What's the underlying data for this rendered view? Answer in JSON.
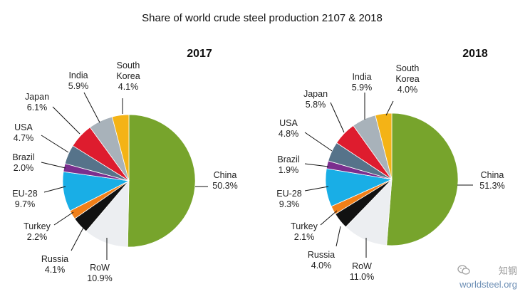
{
  "chart_data": {
    "title": "Share of world crude steel production 2107 & 2018",
    "type": "pie",
    "charts": [
      {
        "year_label": "2017",
        "slices": [
          {
            "name": "China",
            "label_lines": [
              "China"
            ],
            "value_label": "50.3%",
            "value": 50.3,
            "color": "#77a42c"
          },
          {
            "name": "RoW",
            "label_lines": [
              "RoW"
            ],
            "value_label": "10.9%",
            "value": 10.9,
            "color": "#eceef1"
          },
          {
            "name": "Russia",
            "label_lines": [
              "Russia"
            ],
            "value_label": "4.1%",
            "value": 4.1,
            "color": "#111111"
          },
          {
            "name": "Turkey",
            "label_lines": [
              "Turkey"
            ],
            "value_label": "2.2%",
            "value": 2.2,
            "color": "#f07f19"
          },
          {
            "name": "EU-28",
            "label_lines": [
              "EU-28"
            ],
            "value_label": "9.7%",
            "value": 9.7,
            "color": "#19aee6"
          },
          {
            "name": "Brazil",
            "label_lines": [
              "Brazil"
            ],
            "value_label": "2.0%",
            "value": 2.0,
            "color": "#7b2e8e"
          },
          {
            "name": "USA",
            "label_lines": [
              "USA"
            ],
            "value_label": "4.7%",
            "value": 4.7,
            "color": "#56738a"
          },
          {
            "name": "Japan",
            "label_lines": [
              "Japan"
            ],
            "value_label": "6.1%",
            "value": 6.1,
            "color": "#de1c2e"
          },
          {
            "name": "India",
            "label_lines": [
              "India"
            ],
            "value_label": "5.9%",
            "value": 5.9,
            "color": "#a8b2ba"
          },
          {
            "name": "South Korea",
            "label_lines": [
              "South",
              "Korea"
            ],
            "value_label": "4.1%",
            "value": 4.1,
            "color": "#f4b316"
          }
        ]
      },
      {
        "year_label": "2018",
        "slices": [
          {
            "name": "China",
            "label_lines": [
              "China"
            ],
            "value_label": "51.3%",
            "value": 51.3,
            "color": "#77a42c"
          },
          {
            "name": "RoW",
            "label_lines": [
              "RoW"
            ],
            "value_label": "11.0%",
            "value": 11.0,
            "color": "#eceef1"
          },
          {
            "name": "Russia",
            "label_lines": [
              "Russia"
            ],
            "value_label": "4.0%",
            "value": 4.0,
            "color": "#111111"
          },
          {
            "name": "Turkey",
            "label_lines": [
              "Turkey"
            ],
            "value_label": "2.1%",
            "value": 2.1,
            "color": "#f07f19"
          },
          {
            "name": "EU-28",
            "label_lines": [
              "EU-28"
            ],
            "value_label": "9.3%",
            "value": 9.3,
            "color": "#19aee6"
          },
          {
            "name": "Brazil",
            "label_lines": [
              "Brazil"
            ],
            "value_label": "1.9%",
            "value": 1.9,
            "color": "#7b2e8e"
          },
          {
            "name": "USA",
            "label_lines": [
              "USA"
            ],
            "value_label": "4.8%",
            "value": 4.8,
            "color": "#56738a"
          },
          {
            "name": "Japan",
            "label_lines": [
              "Japan"
            ],
            "value_label": "5.8%",
            "value": 5.8,
            "color": "#de1c2e"
          },
          {
            "name": "India",
            "label_lines": [
              "India"
            ],
            "value_label": "5.9%",
            "value": 5.9,
            "color": "#a8b2ba"
          },
          {
            "name": "South Korea",
            "label_lines": [
              "South",
              "Korea"
            ],
            "value_label": "4.0%",
            "value": 4.0,
            "color": "#f4b316"
          }
        ]
      }
    ]
  },
  "watermark": {
    "brand": "知钢",
    "site": "worldsteel.org",
    "icon": "wechat-icon"
  }
}
